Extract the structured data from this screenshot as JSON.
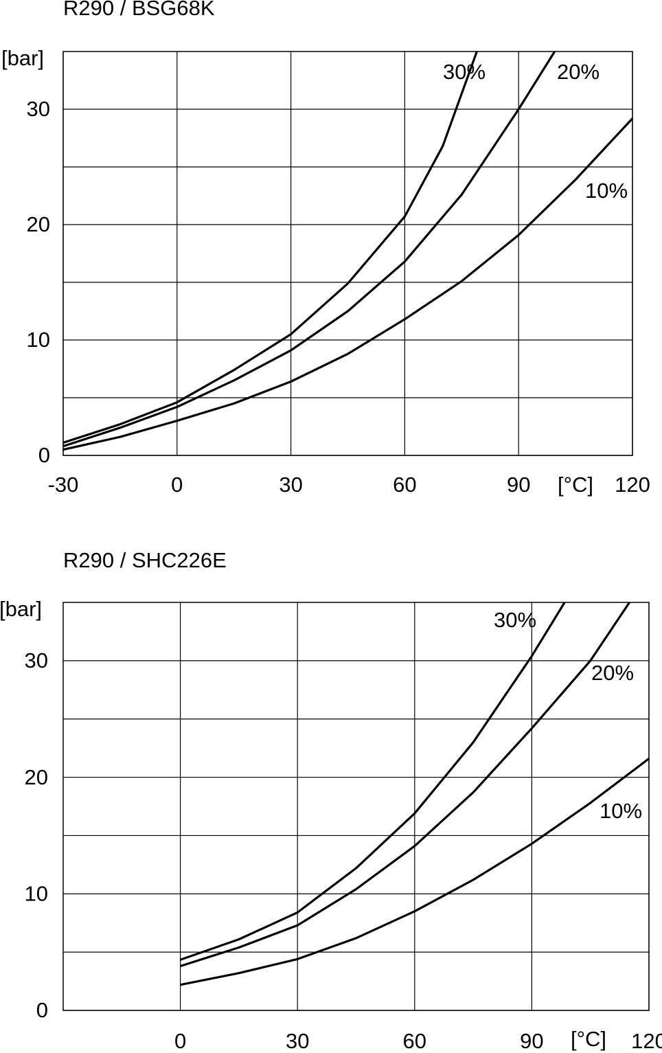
{
  "chart_data": [
    {
      "type": "line",
      "title": "R290 / BSG68K",
      "y_label": "[bar]",
      "x_label": "[°C]",
      "xlim": [
        -30,
        120
      ],
      "ylim": [
        0,
        35
      ],
      "xticks": [
        -30,
        0,
        30,
        60,
        90,
        120
      ],
      "yticks": [
        0,
        10,
        20,
        30
      ],
      "minor_yticks": [
        5,
        15,
        25
      ],
      "grid": true,
      "series": [
        {
          "name": "30%",
          "color": "#000000",
          "x": [
            -30,
            -15,
            0,
            15,
            30,
            45,
            60,
            70,
            79
          ],
          "values": [
            1.1,
            2.7,
            4.6,
            7.4,
            10.5,
            14.9,
            20.7,
            26.8,
            35
          ]
        },
        {
          "name": "20%",
          "color": "#000000",
          "x": [
            -30,
            -15,
            0,
            15,
            30,
            45,
            60,
            75,
            90,
            99.5
          ],
          "values": [
            0.8,
            2.4,
            4.2,
            6.5,
            9.1,
            12.5,
            16.8,
            22.6,
            30,
            35
          ]
        },
        {
          "name": "10%",
          "color": "#000000",
          "x": [
            -30,
            -15,
            0,
            15,
            30,
            45,
            60,
            75,
            90,
            105,
            120
          ],
          "values": [
            0.5,
            1.6,
            3.0,
            4.5,
            6.4,
            8.8,
            11.8,
            15.1,
            19.1,
            23.9,
            29.2
          ]
        }
      ]
    },
    {
      "type": "line",
      "title": "R290 / SHC226E",
      "y_label": "[bar]",
      "x_label": "[°C]",
      "xlim": [
        -30,
        120
      ],
      "ylim": [
        0,
        35
      ],
      "xticks": [
        0,
        30,
        60,
        90,
        120
      ],
      "yticks": [
        0,
        10,
        20,
        30
      ],
      "minor_yticks": [
        5,
        15,
        25
      ],
      "grid": true,
      "series": [
        {
          "name": "30%",
          "color": "#000000",
          "x": [
            0,
            15,
            30,
            45,
            60,
            75,
            90,
            98.4
          ],
          "values": [
            4.35,
            6.1,
            8.4,
            12.2,
            16.9,
            23,
            30.4,
            35
          ]
        },
        {
          "name": "20%",
          "color": "#000000",
          "x": [
            0,
            15,
            30,
            45,
            60,
            75,
            90,
            105,
            115
          ],
          "values": [
            3.8,
            5.4,
            7.3,
            10.4,
            14.1,
            18.7,
            24.2,
            30,
            35
          ]
        },
        {
          "name": "10%",
          "color": "#000000",
          "x": [
            0,
            15,
            30,
            45,
            60,
            75,
            90,
            105,
            120
          ],
          "values": [
            2.2,
            3.2,
            4.4,
            6.2,
            8.5,
            11.2,
            14.3,
            17.8,
            21.6
          ]
        }
      ]
    }
  ]
}
